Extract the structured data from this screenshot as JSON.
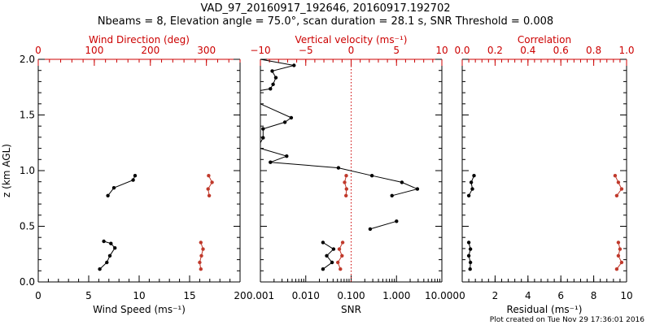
{
  "header": {
    "title_line1": "VAD_97_20160917_192646, 20160917.192702",
    "title_line2": "Nbeams = 8, Elevation angle = 75.0°, scan duration = 28.1 s, SNR Threshold = 0.008"
  },
  "footer": {
    "plot_created": "Plot created on Tue Nov 29 17:36:01 2016"
  },
  "colors": {
    "axes": "#000000",
    "red": "#cc0000",
    "primary_series": "#000000",
    "secondary_series": "#c0392b"
  },
  "chart_data": [
    {
      "type": "line",
      "id": "wind",
      "ylabel": "z (km AGL)",
      "ylim": [
        0.0,
        2.0
      ],
      "yticks": [
        0.0,
        0.5,
        1.0,
        1.5,
        2.0
      ],
      "ytick_labels": [
        "0.0",
        "0.5",
        "1.0",
        "1.5",
        "2.0"
      ],
      "bottom_axis": {
        "label": "Wind Speed (ms⁻¹)",
        "lim": [
          0,
          20
        ],
        "ticks": [
          0,
          5,
          10,
          15,
          20
        ],
        "tick_labels": [
          "0",
          "5",
          "10",
          "15",
          "20"
        ]
      },
      "top_axis": {
        "label": "Wind Direction (deg)",
        "lim": [
          0,
          360
        ],
        "ticks": [
          0,
          100,
          200,
          300
        ],
        "tick_labels": [
          "0",
          "100",
          "200",
          "300"
        ]
      },
      "series": [
        {
          "axis": "bottom",
          "color": "black",
          "segments": [
            [
              [
                9.6,
                0.955
              ],
              [
                9.4,
                0.915
              ],
              [
                7.5,
                0.845
              ],
              [
                6.9,
                0.775
              ]
            ],
            [
              [
                6.5,
                0.365
              ],
              [
                7.2,
                0.345
              ],
              [
                7.6,
                0.305
              ],
              [
                7.1,
                0.235
              ],
              [
                6.8,
                0.175
              ],
              [
                6.1,
                0.115
              ]
            ]
          ]
        },
        {
          "axis": "top",
          "color": "red",
          "segments": [
            [
              [
                304,
                0.955
              ],
              [
                310,
                0.895
              ],
              [
                303,
                0.835
              ],
              [
                305,
                0.775
              ]
            ],
            [
              [
                290,
                0.355
              ],
              [
                294,
                0.295
              ],
              [
                291,
                0.235
              ],
              [
                288,
                0.175
              ],
              [
                290,
                0.115
              ]
            ]
          ]
        }
      ]
    },
    {
      "type": "line",
      "id": "vertical_snr",
      "ylim": [
        0.0,
        2.0
      ],
      "bottom_axis": {
        "label": "SNR",
        "scale": "log",
        "lim": [
          0.001,
          10
        ],
        "ticks": [
          0.001,
          0.01,
          0.1,
          1,
          10
        ],
        "tick_labels": [
          "0.001",
          "0.010",
          "0.100",
          "1.000",
          "10.000"
        ]
      },
      "top_axis": {
        "label": "Vertical velocity (ms⁻¹)",
        "lim": [
          -10,
          10
        ],
        "ticks": [
          -10,
          -5,
          0,
          5,
          10
        ],
        "tick_labels": [
          "−10",
          "−5",
          "0",
          "5",
          "10"
        ]
      },
      "zero_line": {
        "axis": "top",
        "value": 0
      },
      "series": [
        {
          "axis": "top",
          "color": "black",
          "segments": [
            [
              [
                -10,
                2.0
              ],
              [
                -6.3,
                1.945
              ],
              [
                -8.7,
                1.895
              ],
              [
                -8.3,
                1.835
              ],
              [
                -8.6,
                1.775
              ],
              [
                -8.9,
                1.735
              ],
              [
                -10,
                1.72
              ]
            ],
            [
              [
                -10,
                1.6
              ],
              [
                -6.6,
                1.475
              ],
              [
                -7.3,
                1.435
              ],
              [
                -9.7,
                1.375
              ],
              [
                -9.7,
                1.295
              ],
              [
                -10,
                1.25
              ]
            ],
            [
              [
                -10,
                1.2
              ],
              [
                -7.1,
                1.13
              ],
              [
                -8.9,
                1.075
              ],
              [
                -1.4,
                1.025
              ],
              [
                2.3,
                0.955
              ],
              [
                5.6,
                0.895
              ],
              [
                7.3,
                0.835
              ],
              [
                4.5,
                0.775
              ]
            ],
            [
              [
                5.0,
                0.545
              ],
              [
                2.1,
                0.475
              ]
            ]
          ]
        },
        {
          "axis": "bottom",
          "color": "black",
          "segments": [
            [
              [
                0.024,
                0.355
              ],
              [
                0.041,
                0.295
              ],
              [
                0.029,
                0.235
              ],
              [
                0.038,
                0.175
              ],
              [
                0.024,
                0.115
              ]
            ]
          ]
        },
        {
          "axis": "bottom",
          "color": "red",
          "segments": [
            [
              [
                0.078,
                0.955
              ],
              [
                0.072,
                0.895
              ],
              [
                0.079,
                0.835
              ],
              [
                0.077,
                0.775
              ]
            ],
            [
              [
                0.065,
                0.355
              ],
              [
                0.055,
                0.295
              ],
              [
                0.063,
                0.235
              ],
              [
                0.051,
                0.175
              ],
              [
                0.058,
                0.115
              ]
            ]
          ]
        }
      ]
    },
    {
      "type": "line",
      "id": "residual_correlation",
      "ylim": [
        0.0,
        2.0
      ],
      "bottom_axis": {
        "label": "Residual (ms⁻¹)",
        "lim": [
          0,
          10
        ],
        "ticks": [
          0,
          2,
          4,
          6,
          8,
          10
        ],
        "tick_labels": [
          "0",
          "2",
          "4",
          "6",
          "8",
          "10"
        ]
      },
      "top_axis": {
        "label": "Correlation",
        "lim": [
          0.0,
          1.0
        ],
        "ticks": [
          0.0,
          0.2,
          0.4,
          0.6,
          0.8,
          1.0
        ],
        "tick_labels": [
          "0.0",
          "0.2",
          "0.4",
          "0.6",
          "0.8",
          "1.0"
        ]
      },
      "series": [
        {
          "axis": "bottom",
          "color": "black",
          "segments": [
            [
              [
                0.72,
                0.955
              ],
              [
                0.55,
                0.895
              ],
              [
                0.62,
                0.835
              ],
              [
                0.4,
                0.775
              ]
            ],
            [
              [
                0.4,
                0.355
              ],
              [
                0.5,
                0.295
              ],
              [
                0.4,
                0.235
              ],
              [
                0.5,
                0.175
              ],
              [
                0.48,
                0.115
              ]
            ]
          ]
        },
        {
          "axis": "top",
          "color": "red",
          "segments": [
            [
              [
                0.93,
                0.955
              ],
              [
                0.95,
                0.895
              ],
              [
                0.97,
                0.835
              ],
              [
                0.94,
                0.775
              ]
            ],
            [
              [
                0.95,
                0.355
              ],
              [
                0.96,
                0.295
              ],
              [
                0.95,
                0.235
              ],
              [
                0.97,
                0.175
              ],
              [
                0.94,
                0.115
              ]
            ]
          ]
        }
      ]
    }
  ]
}
